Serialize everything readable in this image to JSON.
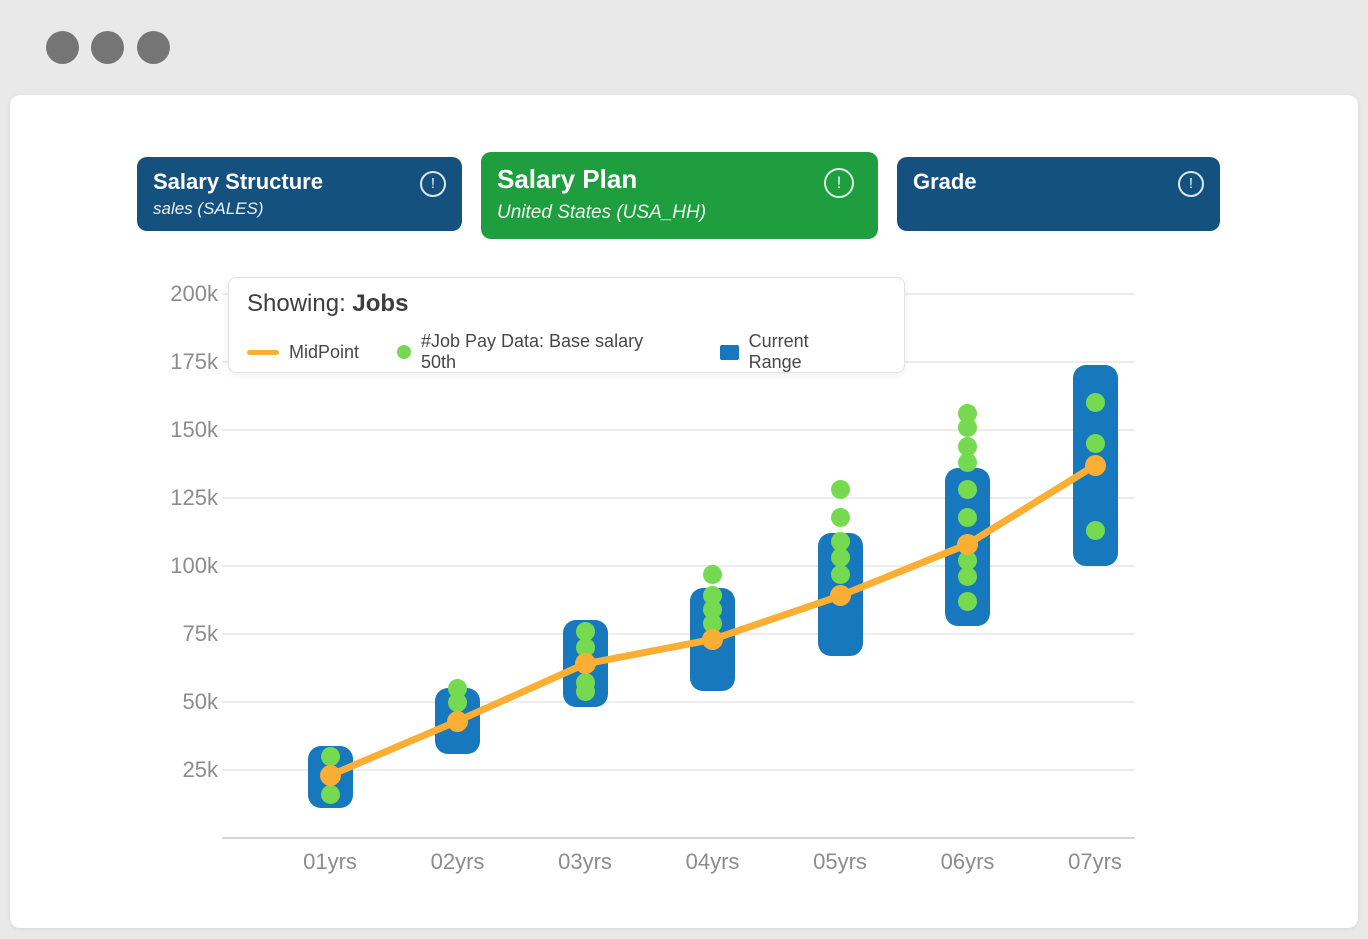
{
  "window": {
    "control_dots": 3,
    "dot_color": "#757575"
  },
  "filters": [
    {
      "title": "Salary Structure",
      "subtitle": "sales (SALES)",
      "color": "#15517E",
      "icon": "alert-circle"
    },
    {
      "title": "Salary Plan",
      "subtitle": "United States (USA_HH)",
      "color": "#1E9E3E",
      "icon": "alert-circle"
    },
    {
      "title": "Grade",
      "subtitle": "",
      "color": "#15517E",
      "icon": "alert-circle"
    }
  ],
  "legend": {
    "showing_label": "Showing:",
    "showing_value": "Jobs",
    "items": [
      {
        "label": "MidPoint",
        "swatch": "line",
        "color": "#FBAE34"
      },
      {
        "label": "#Job Pay Data: Base salary 50th",
        "swatch": "dot",
        "color": "#75DA4F"
      },
      {
        "label": "Current Range",
        "swatch": "square",
        "color": "#1878BE"
      }
    ]
  },
  "chart_data": {
    "type": "mixed",
    "unit": "USD thousands",
    "categories": [
      "01yrs",
      "02yrs",
      "03yrs",
      "04yrs",
      "05yrs",
      "06yrs",
      "07yrs"
    ],
    "ylim": [
      0,
      200
    ],
    "ytick_values": [
      25,
      50,
      75,
      100,
      125,
      150,
      175,
      200
    ],
    "ytick_labels": [
      "25k",
      "50k",
      "75k",
      "100k",
      "125k",
      "150k",
      "175k",
      "200k"
    ],
    "grid": true,
    "legend_position": "top-left",
    "series": [
      {
        "name": "Current Range",
        "type": "range-bar",
        "color": "#1878BE",
        "ranges": [
          [
            11,
            34
          ],
          [
            31,
            55
          ],
          [
            48,
            80
          ],
          [
            54,
            92
          ],
          [
            67,
            112
          ],
          [
            78,
            136
          ],
          [
            100,
            174
          ]
        ]
      },
      {
        "name": "MidPoint",
        "type": "line",
        "color": "#FBAE34",
        "values": [
          23,
          43,
          64,
          73,
          89,
          108,
          137
        ]
      },
      {
        "name": "#Job Pay Data: Base salary 50th",
        "type": "scatter",
        "color": "#75DA4F",
        "points_by_category": [
          [
            30,
            16
          ],
          [
            55,
            50
          ],
          [
            76,
            70,
            57,
            54
          ],
          [
            97,
            89,
            84,
            79
          ],
          [
            128,
            118,
            109,
            103,
            97
          ],
          [
            156,
            151,
            144,
            138,
            128,
            118,
            102,
            96,
            87
          ],
          [
            160,
            145,
            113
          ]
        ]
      }
    ]
  }
}
